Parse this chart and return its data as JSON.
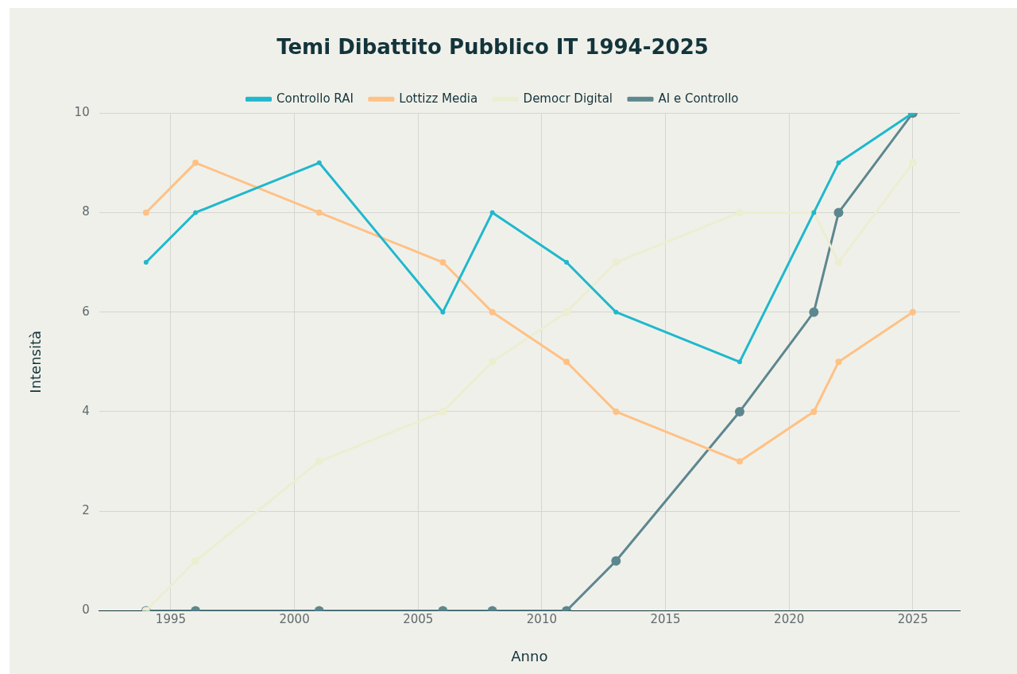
{
  "chart_data": {
    "type": "line",
    "title": "Temi Dibattito Pubblico IT 1994-2025",
    "xlabel": "Anno",
    "ylabel": "Intensità",
    "x": [
      1994,
      1996,
      2001,
      2006,
      2008,
      2011,
      2013,
      2018,
      2021,
      2022,
      2025
    ],
    "series": [
      {
        "name": "Controllo RAI",
        "color": "#1fb8cd",
        "values": [
          7,
          8,
          9,
          6,
          8,
          7,
          6,
          5,
          8,
          9,
          10
        ]
      },
      {
        "name": "Lottizz Media",
        "color": "#ffc185",
        "values": [
          8,
          9,
          8,
          7,
          6,
          5,
          4,
          3,
          4,
          5,
          6
        ]
      },
      {
        "name": "Democr Digital",
        "color": "#eceed2",
        "values": [
          0,
          1,
          3,
          4,
          5,
          6,
          7,
          8,
          8,
          7,
          9
        ]
      },
      {
        "name": "AI e Controllo",
        "color": "#5d878f",
        "values": [
          0,
          0,
          0,
          0,
          0,
          0,
          1,
          4,
          6,
          8,
          10
        ]
      }
    ],
    "xlim": [
      1992.1,
      2026.9
    ],
    "xticks": [
      1995,
      2000,
      2005,
      2010,
      2015,
      2020,
      2025
    ],
    "ylim": [
      0,
      10
    ],
    "yticks": [
      0,
      2,
      4,
      6,
      8,
      10
    ],
    "grid": true,
    "legend": "top",
    "marker": "circle",
    "line_style": "solid"
  }
}
